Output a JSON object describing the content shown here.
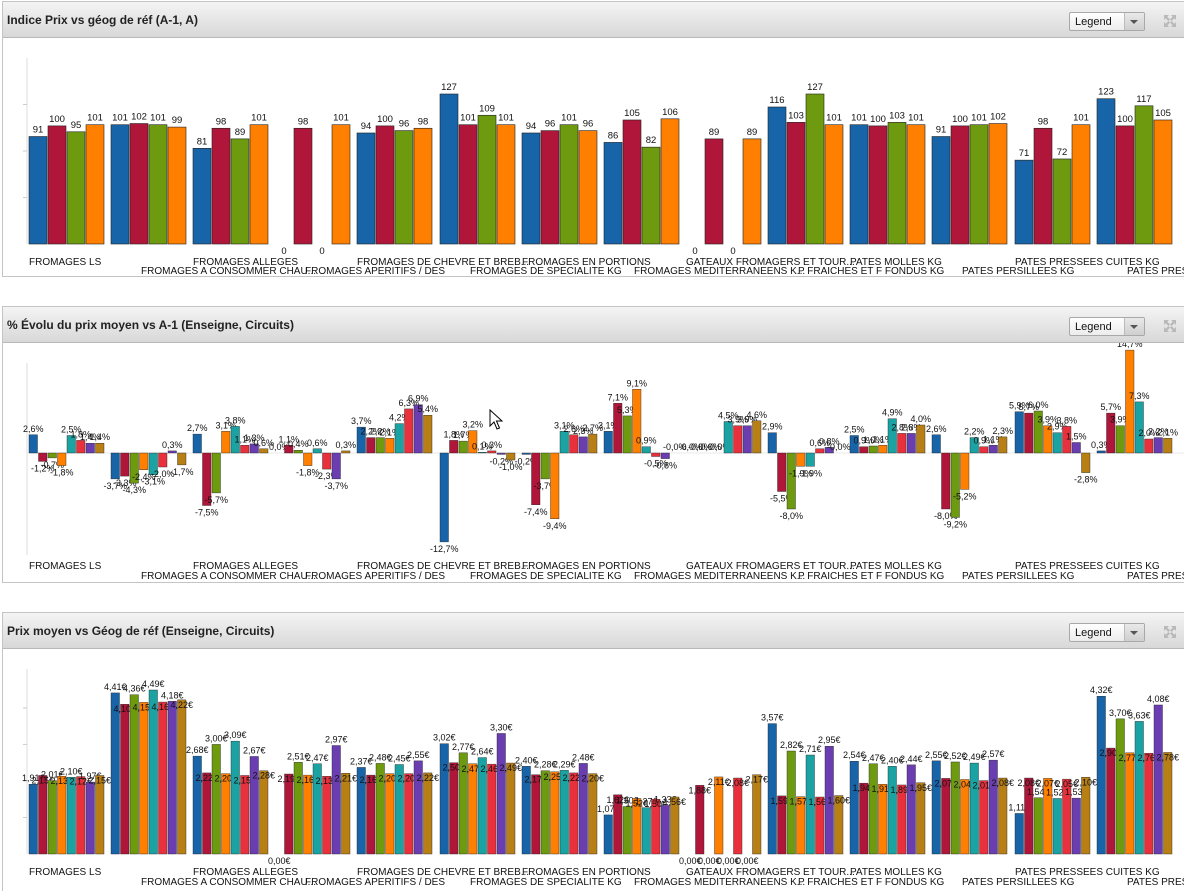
{
  "charts": [
    {
      "title": "Indice Prix vs géog de réf (A-1, A)",
      "legend_label": "Legend"
    },
    {
      "title": "% Évolu du prix moyen vs A-1 (Enseigne, Circuits)",
      "legend_label": "Legend"
    },
    {
      "title": "Prix moyen vs Géog de réf (Enseigne, Circuits)",
      "legend_label": "Legend"
    }
  ],
  "icons": {
    "legend_dropdown": "chevron-down-icon",
    "expand": "expand-icon",
    "cursor": "mouse-pointer-icon"
  },
  "colors": {
    "series": [
      "#1764a9",
      "#b0163a",
      "#6d9a0f",
      "#ff7f00",
      "#1aa3a2",
      "#e8313d",
      "#6a3eb0",
      "#b87f15"
    ]
  },
  "chart_data": [
    {
      "type": "bar",
      "title": "Indice Prix vs géog de réf (A-1, A)",
      "categories": [
        "FROMAGES LS",
        "FROMAGES A CONSOMMER CHAU...",
        "FROMAGES ALLEGES",
        "FROMAGES APERITIFS / DES",
        "FROMAGES DE CHEVRE ET BREB...",
        "FROMAGES DE SPECIALITE KG",
        "FROMAGES EN PORTIONS",
        "FROMAGES MEDITERRANEENS K...",
        "GATEAUX FROMAGERS ET TOUR...",
        "P FRAICHES ET F FONDUS KG",
        "PATES MOLLES KG",
        "PATES PERSILLEES KG",
        "PATES PRESSEES CUITES KG",
        "PATES PRESSEES NON CUITES"
      ],
      "value_labels": [
        [
          "91",
          "100",
          "95",
          "101"
        ],
        [
          "101",
          "102",
          "101",
          "99"
        ],
        [
          "81",
          "98",
          "89",
          "101"
        ],
        [
          "0",
          "98",
          "0",
          "101"
        ],
        [
          "94",
          "100",
          "96",
          "98"
        ],
        [
          "127",
          "101",
          "109",
          "101"
        ],
        [
          "94",
          "96",
          "101",
          "96"
        ],
        [
          "86",
          "105",
          "82",
          "106"
        ],
        [
          "0",
          "89",
          "0",
          "89"
        ],
        [
          "116",
          "103",
          "127",
          "101"
        ],
        [
          "101",
          "100",
          "103",
          "101"
        ],
        [
          "91",
          "100",
          "101",
          "102"
        ],
        [
          "71",
          "98",
          "72",
          "101"
        ],
        [
          "123",
          "100",
          "117",
          "105"
        ]
      ],
      "values": [
        [
          91,
          100,
          95,
          101
        ],
        [
          101,
          102,
          101,
          99
        ],
        [
          81,
          98,
          89,
          101
        ],
        [
          0,
          98,
          0,
          101
        ],
        [
          94,
          100,
          96,
          98
        ],
        [
          127,
          101,
          109,
          101
        ],
        [
          94,
          96,
          101,
          96
        ],
        [
          86,
          105,
          82,
          106
        ],
        [
          0,
          89,
          0,
          89
        ],
        [
          116,
          103,
          127,
          101
        ],
        [
          101,
          100,
          103,
          101
        ],
        [
          91,
          100,
          101,
          102
        ],
        [
          71,
          98,
          72,
          101
        ],
        [
          123,
          100,
          117,
          105
        ]
      ],
      "ylim": [
        0,
        140
      ]
    },
    {
      "type": "bar",
      "title": "% Évolu du prix moyen vs A-1 (Enseigne, Circuits)",
      "categories": [
        "FROMAGES LS",
        "FROMAGES A CONSOMMER CHAU...",
        "FROMAGES ALLEGES",
        "FROMAGES APERITIFS / DES",
        "FROMAGES DE CHEVRE ET BREB...",
        "FROMAGES DE SPECIALITE KG",
        "FROMAGES EN PORTIONS",
        "FROMAGES MEDITERRANEENS K...",
        "GATEAUX FROMAGERS ET TOUR...",
        "P FRAICHES ET F FONDUS KG",
        "PATES MOLLES KG",
        "PATES PERSILLEES KG",
        "PATES PRESSEES CUITES KG",
        "PATES PRESSEES NON CUITES"
      ],
      "values": [
        [
          2.6,
          -1.2,
          -0.7,
          -1.8,
          2.5,
          1.8,
          1.4,
          1.4
        ],
        [
          -3.7,
          -3.3,
          -4.3,
          -2.4,
          -3.1,
          -2.0,
          0.3,
          -1.7
        ],
        [
          2.7,
          -7.5,
          -5.7,
          3.1,
          3.8,
          1.1,
          1.3,
          0.6
        ],
        [
          0.0,
          1.1,
          0.4,
          -1.8,
          0.6,
          -2.3,
          -3.7,
          0.3
        ],
        [
          3.7,
          2.2,
          2.2,
          2.1,
          4.2,
          6.3,
          6.9,
          5.4
        ],
        [
          -12.7,
          1.8,
          1.7,
          3.2,
          0.1,
          0.3,
          -0.2,
          -1.0
        ],
        [
          -0.2,
          -7.4,
          -3.7,
          -9.4,
          3.1,
          2.6,
          2.3,
          2.7
        ],
        [
          3.1,
          7.1,
          5.3,
          9.1,
          0.9,
          -0.5,
          -0.8,
          -0.0
        ],
        [
          -0.0,
          -0.0,
          -0.0,
          -0.0,
          4.5,
          3.9,
          3.9,
          4.6
        ],
        [
          2.9,
          -5.5,
          -8.0,
          -1.9,
          -1.9,
          0.6,
          0.8,
          -0.0
        ],
        [
          2.5,
          0.9,
          1.0,
          1.1,
          4.9,
          2.8,
          2.8,
          4.0
        ],
        [
          2.6,
          -8.0,
          -9.2,
          -5.2,
          2.2,
          0.9,
          1.1,
          2.3
        ],
        [
          5.9,
          5.7,
          6.0,
          3.9,
          2.9,
          3.8,
          1.5,
          -2.8
        ],
        [
          0.3,
          5.7,
          3.9,
          14.7,
          7.3,
          2.0,
          2.2,
          2.1
        ]
      ],
      "value_labels": [
        [
          "2,6%",
          "-1,2%",
          "-0,7%",
          "-1,8%",
          "2,5%",
          "1,8%",
          "1,4%",
          "1,4%"
        ],
        [
          "-3,7%",
          "-3,3%",
          "-4,3%",
          "-2,4%",
          "-3,1%",
          "-2,0%",
          "0,3%",
          "-1,7%"
        ],
        [
          "2,7%",
          "-7,5%",
          "-5,7%",
          "3,1%",
          "3,8%",
          "1,1%",
          "1,3%",
          "0,6%"
        ],
        [
          "0,0%",
          "1,1%",
          "0,4%",
          "-1,8%",
          "0,6%",
          "-2,3%",
          "-3,7%",
          "0,3%"
        ],
        [
          "3,7%",
          "2,2%",
          "2,2%",
          "2,1%",
          "4,2%",
          "6,3%",
          "6,9%",
          "5,4%"
        ],
        [
          "-12,7%",
          "1,8%",
          "1,7%",
          "3,2%",
          "0,1%",
          "0,3%",
          "-0,2%",
          "-1,0%"
        ],
        [
          "-0,2%",
          "-7,4%",
          "-3,7%",
          "-9,4%",
          "3,1%",
          "2,6%",
          "2,3%",
          "2,7%"
        ],
        [
          "3,1%",
          "7,1%",
          "5,3%",
          "9,1%",
          "0,9%",
          "-0,5%",
          "-0,8%",
          "-0,0%"
        ],
        [
          "-0,0%",
          "-0,0%",
          "-0,0%",
          "-0,0%",
          "4,5%",
          "3,9%",
          "3,9%",
          "4,6%"
        ],
        [
          "2,9%",
          "-5,5%",
          "-8,0%",
          "-1,9%",
          "-1,9%",
          "0,6%",
          "0,8%",
          "-0,0%"
        ],
        [
          "2,5%",
          "0,9%",
          "1,0%",
          "1,1%",
          "4,9%",
          "2,8%",
          "2,8%",
          "4,0%"
        ],
        [
          "2,6%",
          "-8,0%",
          "-9,2%",
          "-5,2%",
          "2,2%",
          "0,9%",
          "1,1%",
          "2,3%"
        ],
        [
          "5,9%",
          "5,7%",
          "6,0%",
          "3,9%",
          "2,9%",
          "3,8%",
          "1,5%",
          "-2,8%"
        ],
        [
          "0,3%",
          "5,7%",
          "3,9%",
          "14,7%",
          "7,3%",
          "2,0%",
          "2,2%",
          "2,1%"
        ]
      ],
      "ylim": [
        -16,
        16
      ]
    },
    {
      "type": "bar",
      "title": "Prix moyen vs Géog de réf (Enseigne, Circuits)",
      "categories": [
        "FROMAGES LS",
        "FROMAGES A CONSOMMER CHAU...",
        "FROMAGES ALLEGES",
        "FROMAGES APERITIFS / DES",
        "FROMAGES DE CHEVRE ET BREB...",
        "FROMAGES DE SPECIALITE KG",
        "FROMAGES EN PORTIONS",
        "FROMAGES MEDITERRANEENS K...",
        "GATEAUX FROMAGERS ET TOUR...",
        "P FRAICHES ET F FONDUS KG",
        "PATES MOLLES KG",
        "PATES PERSILLEES KG",
        "PATES PRESSEES CUITES KG",
        "PATES PRESSEES NON CUITES"
      ],
      "values": [
        [
          1.91,
          2.15,
          2.01,
          2.13,
          2.1,
          2.12,
          1.97,
          2.15
        ],
        [
          4.41,
          4.1,
          4.36,
          4.15,
          4.49,
          4.16,
          4.18,
          4.22
        ],
        [
          2.68,
          2.22,
          3.0,
          2.2,
          3.09,
          2.15,
          2.67,
          2.28
        ],
        [
          0.0,
          2.19,
          2.51,
          2.16,
          2.47,
          2.13,
          2.97,
          2.21
        ],
        [
          2.37,
          2.16,
          2.48,
          2.2,
          2.45,
          2.2,
          2.55,
          2.22
        ],
        [
          3.02,
          2.5,
          2.77,
          2.47,
          2.64,
          2.46,
          3.3,
          2.49
        ],
        [
          2.4,
          2.17,
          2.28,
          2.25,
          2.29,
          2.22,
          2.48,
          2.2
        ],
        [
          1.07,
          1.62,
          1.3,
          1.52,
          1.27,
          1.5,
          1.33,
          1.56
        ],
        [
          0.0,
          1.88,
          0.0,
          2.11,
          0.0,
          2.08,
          0.0,
          2.17
        ],
        [
          3.57,
          1.59,
          2.82,
          1.57,
          2.71,
          1.56,
          2.95,
          1.6
        ],
        [
          2.54,
          1.94,
          2.47,
          1.91,
          2.4,
          1.89,
          2.44,
          1.95
        ],
        [
          2.55,
          2.07,
          2.52,
          2.04,
          2.49,
          2.01,
          2.57,
          2.08
        ],
        [
          1.11,
          2.08,
          1.54,
          2.07,
          1.52,
          2.05,
          1.53,
          2.1
        ],
        [
          4.32,
          2.9,
          3.7,
          2.77,
          3.63,
          2.76,
          4.08,
          2.78
        ]
      ],
      "value_labels": [
        [
          "1,91€",
          "2,15€",
          "2,01€",
          "2,13€",
          "2,10€",
          "2,12€",
          "1,97€",
          "2,15€"
        ],
        [
          "4,41€",
          "4,10€",
          "4,36€",
          "4,15€",
          "4,49€",
          "4,16€",
          "4,18€",
          "4,22€"
        ],
        [
          "2,68€",
          "2,22€",
          "3,00€",
          "2,20€",
          "3,09€",
          "2,15€",
          "2,67€",
          "2,28€"
        ],
        [
          "0,00€",
          "2,19€",
          "2,51€",
          "2,16€",
          "2,47€",
          "2,13€",
          "2,97€",
          "2,21€"
        ],
        [
          "2,37€",
          "2,16€",
          "2,48€",
          "2,20€",
          "2,45€",
          "2,20€",
          "2,55€",
          "2,22€"
        ],
        [
          "3,02€",
          "2,50€",
          "2,77€",
          "2,47€",
          "2,64€",
          "2,46€",
          "3,30€",
          "2,49€"
        ],
        [
          "2,40€",
          "2,17€",
          "2,28€",
          "2,25€",
          "2,29€",
          "2,22€",
          "2,48€",
          "2,20€"
        ],
        [
          "1,07€",
          "1,62€",
          "1,30€",
          "1,52€",
          "1,27€",
          "1,50€",
          "1,33€",
          "1,56€"
        ],
        [
          "0,00€",
          "1,88€",
          "0,00€",
          "2,11€",
          "0,00€",
          "2,08€",
          "0,00€",
          "2,17€"
        ],
        [
          "3,57€",
          "1,59€",
          "2,82€",
          "1,57€",
          "2,71€",
          "1,56€",
          "2,95€",
          "1,60€"
        ],
        [
          "2,54€",
          "1,94€",
          "2,47€",
          "1,91€",
          "2,40€",
          "1,89€",
          "2,44€",
          "1,95€"
        ],
        [
          "2,55€",
          "2,07€",
          "2,52€",
          "2,04€",
          "2,49€",
          "2,01€",
          "2,57€",
          "2,08€"
        ],
        [
          "1,11€",
          "2,08€",
          "1,54€",
          "2,07€",
          "1,52€",
          "2,05€",
          "1,53€",
          "2,10€"
        ],
        [
          "4,32€",
          "2,90€",
          "3,70€",
          "2,77€",
          "3,63€",
          "2,76€",
          "4,08€",
          "2,78€"
        ]
      ],
      "ylim": [
        0,
        5
      ]
    }
  ]
}
